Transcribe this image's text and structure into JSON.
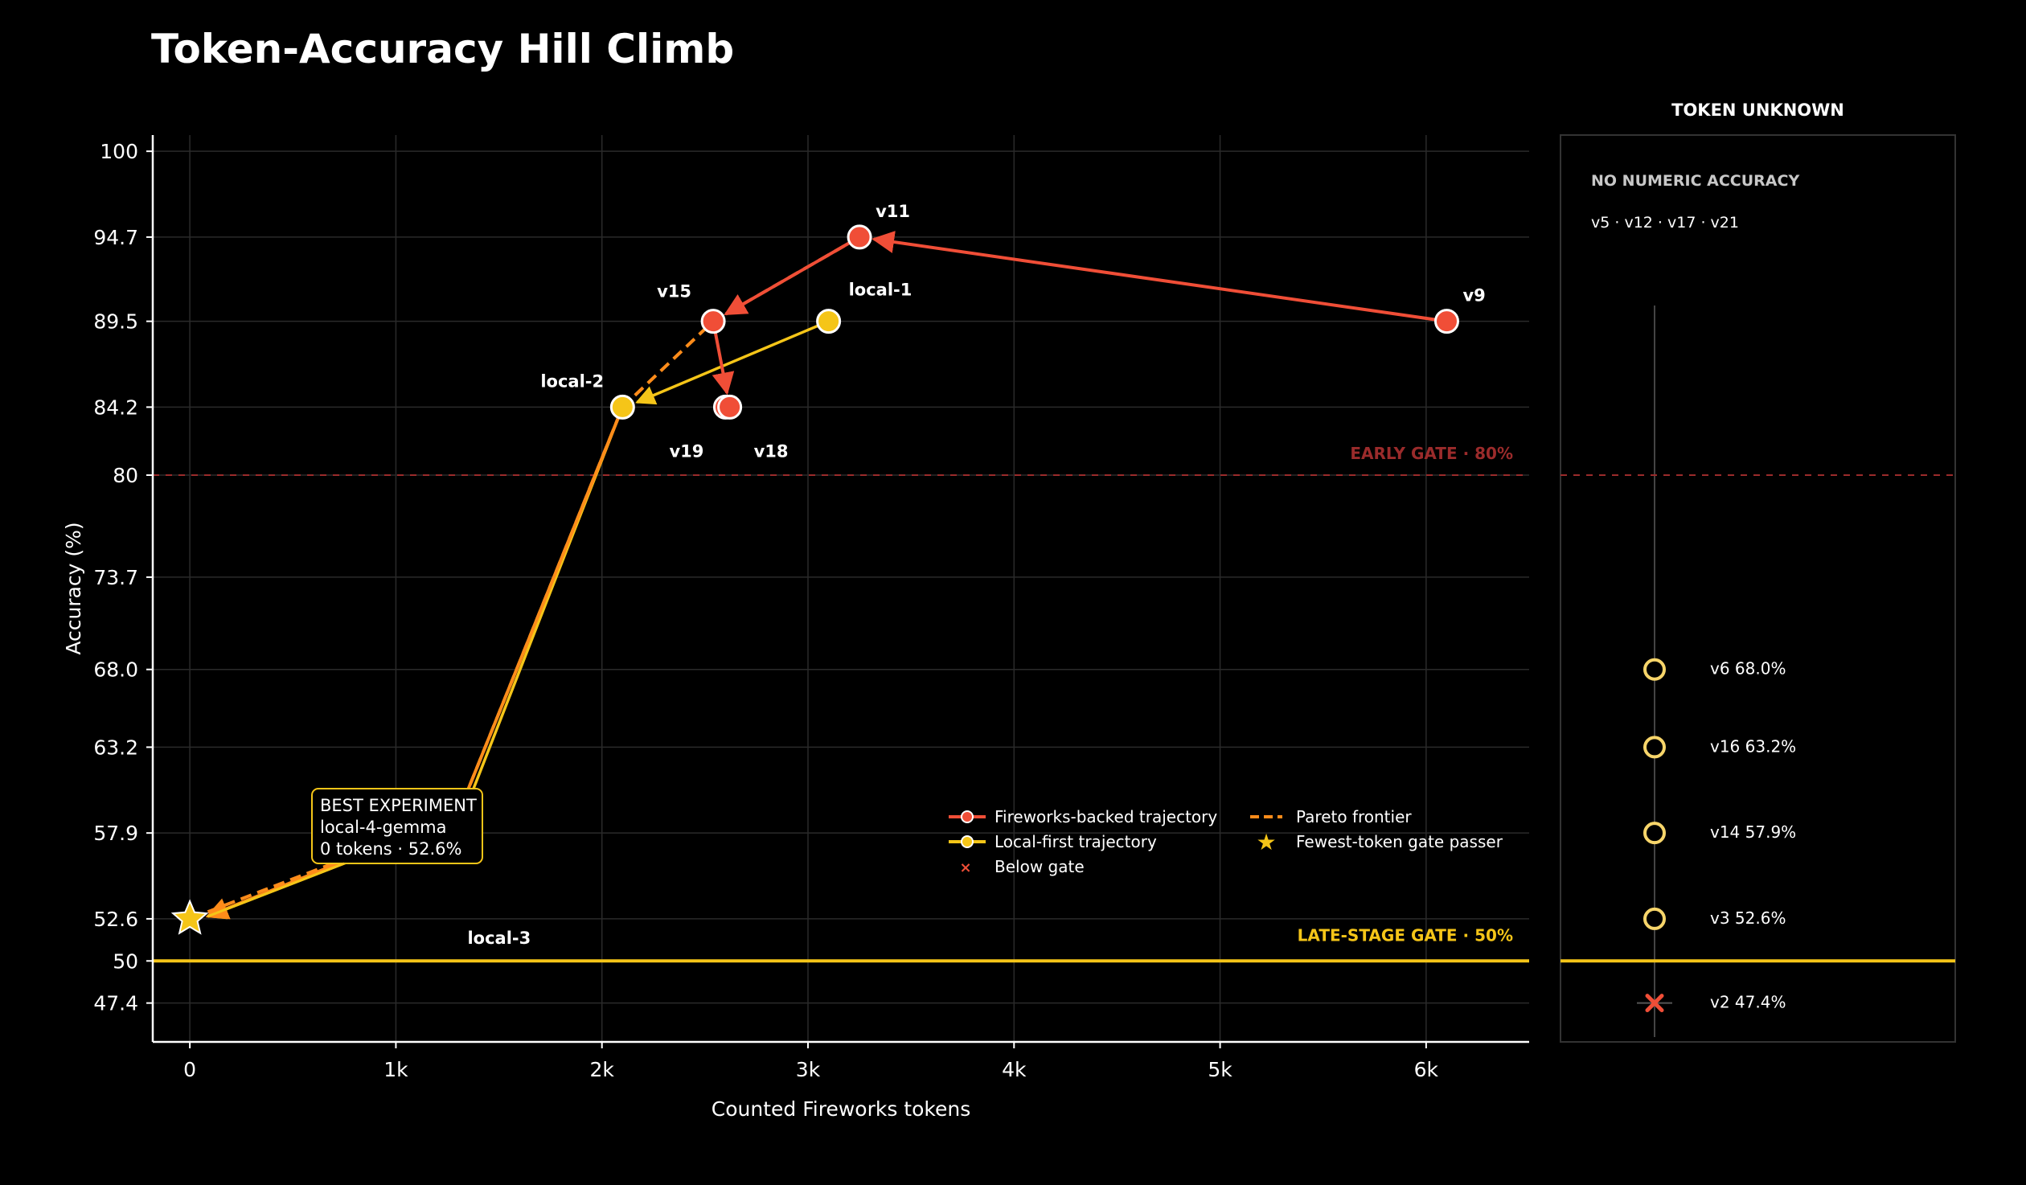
{
  "title": "Token-Accuracy Hill Climb",
  "colors": {
    "fireworks": "#f04e37",
    "local": "#f5c518",
    "pareto": "#ff8c1a",
    "early_gate": "#9b2b2b",
    "late_gate": "#f5c518",
    "grid": "#2a2a2a"
  },
  "chart_data": [
    {
      "type": "line",
      "xlabel": "Counted Fireworks tokens",
      "ylabel": "Accuracy (%)",
      "xlim": [
        -180,
        6500
      ],
      "ylim": [
        45,
        101
      ],
      "x_ticks": [
        {
          "value": 0,
          "label": "0"
        },
        {
          "value": 1000,
          "label": "1k"
        },
        {
          "value": 2000,
          "label": "2k"
        },
        {
          "value": 3000,
          "label": "3k"
        },
        {
          "value": 4000,
          "label": "4k"
        },
        {
          "value": 5000,
          "label": "5k"
        },
        {
          "value": 6000,
          "label": "6k"
        }
      ],
      "y_ticks": [
        {
          "value": 100,
          "label": "100"
        },
        {
          "value": 94.7,
          "label": "94.7"
        },
        {
          "value": 89.5,
          "label": "89.5"
        },
        {
          "value": 84.2,
          "label": "84.2"
        },
        {
          "value": 80,
          "label": "80"
        },
        {
          "value": 73.7,
          "label": "73.7"
        },
        {
          "value": 68.0,
          "label": "68.0"
        },
        {
          "value": 63.2,
          "label": "63.2"
        },
        {
          "value": 57.9,
          "label": "57.9"
        },
        {
          "value": 52.6,
          "label": "52.6"
        },
        {
          "value": 50,
          "label": "50"
        },
        {
          "value": 47.4,
          "label": "47.4"
        }
      ],
      "grid": true,
      "gates": [
        {
          "name": "early",
          "label": "EARLY GATE · 80%",
          "value": 80
        },
        {
          "name": "late",
          "label": "LATE-STAGE GATE · 50%",
          "value": 50
        }
      ],
      "series": [
        {
          "name": "Fireworks-backed trajectory",
          "points": [
            {
              "label": "v9",
              "x": 6100,
              "y": 89.5
            },
            {
              "label": "v11",
              "x": 3250,
              "y": 94.7
            },
            {
              "label": "v15",
              "x": 2540,
              "y": 89.5
            },
            {
              "label": "v18",
              "x": 2620,
              "y": 84.2
            },
            {
              "label": "v19",
              "x": 2600,
              "y": 84.2
            }
          ]
        },
        {
          "name": "Local-first trajectory",
          "points": [
            {
              "label": "local-1",
              "x": 3100,
              "y": 89.5
            },
            {
              "label": "local-2",
              "x": 2100,
              "y": 84.2
            },
            {
              "label": "local-3",
              "x": 1250,
              "y": 58.5
            },
            {
              "label": "local-4-gemma",
              "x": 0,
              "y": 52.6
            }
          ]
        },
        {
          "name": "Pareto frontier",
          "points": [
            {
              "x": 3250,
              "y": 94.7
            },
            {
              "x": 2540,
              "y": 89.5
            },
            {
              "x": 2100,
              "y": 84.2
            },
            {
              "x": 1300,
              "y": 59.0
            },
            {
              "x": 0,
              "y": 52.6
            }
          ]
        }
      ],
      "best": {
        "heading": "BEST EXPERIMENT",
        "name": "local-4-gemma",
        "detail": "0 tokens · 52.6%",
        "x": 0,
        "y": 52.6
      },
      "legend": {
        "placement": "lower-right",
        "entries": [
          {
            "id": "fireworks",
            "label": "Fireworks-backed trajectory"
          },
          {
            "id": "pareto",
            "label": "Pareto frontier"
          },
          {
            "id": "local",
            "label": "Local-first trajectory"
          },
          {
            "id": "star",
            "label": "Fewest-token gate passer"
          },
          {
            "id": "below",
            "label": "Below gate"
          }
        ]
      }
    },
    {
      "type": "scatter",
      "title": "TOKEN UNKNOWN",
      "subtitle": "NO NUMERIC ACCURACY",
      "no_numeric": "v5 · v12 · v17 · v21",
      "ylim": [
        45,
        101
      ],
      "items": [
        {
          "label": "v6  68.0%",
          "y": 68.0,
          "passes_gate": true
        },
        {
          "label": "v16  63.2%",
          "y": 63.2,
          "passes_gate": true
        },
        {
          "label": "v14  57.9%",
          "y": 57.9,
          "passes_gate": true
        },
        {
          "label": "v3  52.6%",
          "y": 52.6,
          "passes_gate": true
        },
        {
          "label": "v2  47.4%",
          "y": 47.4,
          "passes_gate": false
        }
      ]
    }
  ]
}
